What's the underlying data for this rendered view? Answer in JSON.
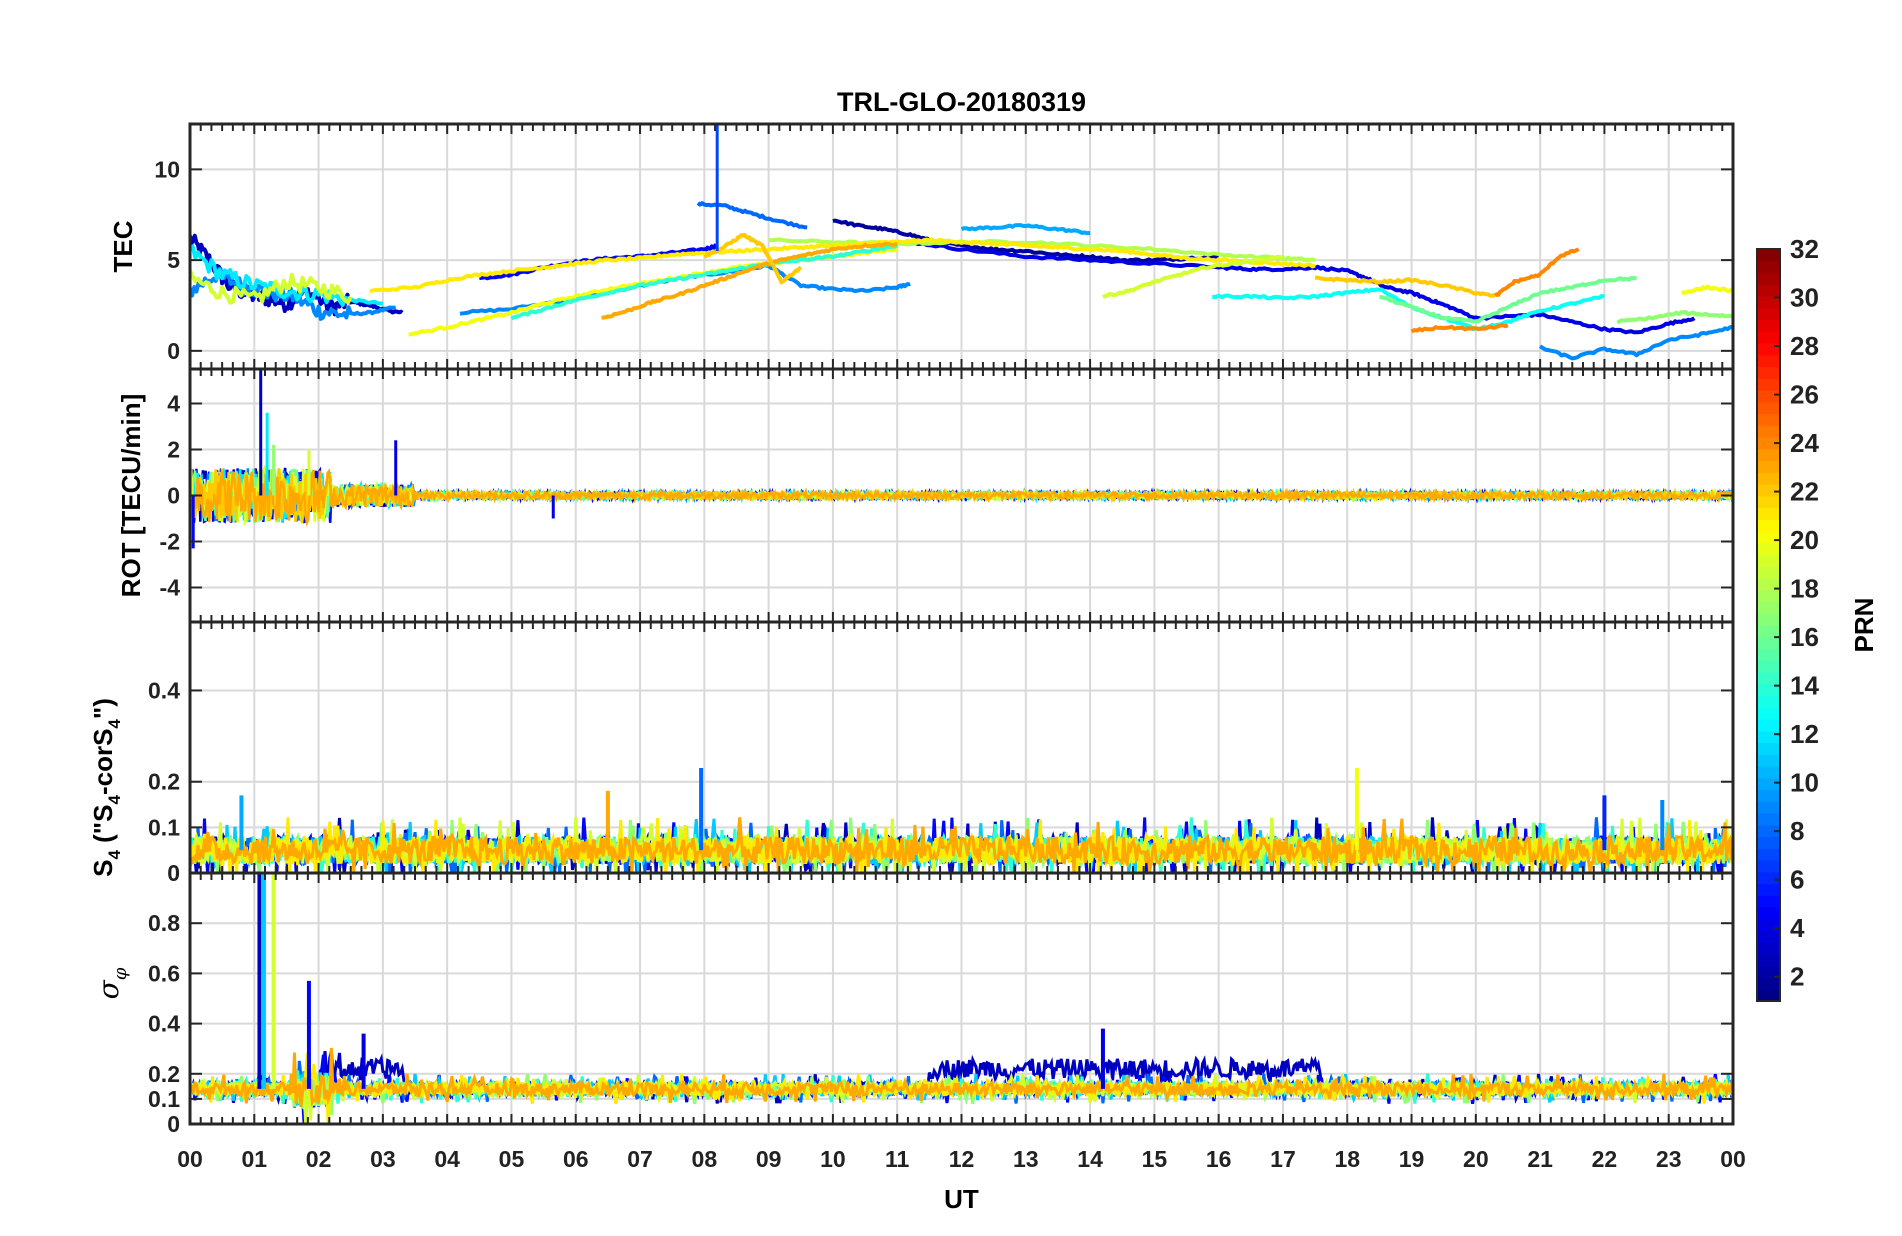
{
  "chart_data": {
    "type": "line",
    "title": "TRL-GLO-20180319",
    "xlabel": "UT",
    "xticks": [
      "00",
      "01",
      "02",
      "03",
      "04",
      "05",
      "06",
      "07",
      "08",
      "09",
      "10",
      "11",
      "12",
      "13",
      "14",
      "15",
      "16",
      "17",
      "18",
      "19",
      "20",
      "21",
      "22",
      "23",
      "00"
    ],
    "xlim": [
      0,
      24
    ],
    "grid": true,
    "panels": [
      {
        "id": "tec",
        "ylabel": "TEC",
        "ylim": [
          -1,
          12.5
        ],
        "yticks": [
          0,
          5,
          10
        ],
        "series": [
          {
            "prn": 3,
            "x": [
              0,
              0.3,
              0.6,
              0.9,
              1.2,
              1.5,
              1.8,
              2.2,
              2.5,
              2.8,
              3.1,
              3.3
            ],
            "y": [
              6.2,
              5.0,
              3.6,
              3.1,
              2.9,
              2.6,
              3.3,
              2.4,
              2.7,
              2.5,
              2.2,
              2.1
            ]
          },
          {
            "prn": 9,
            "x": [
              0,
              0.4,
              0.8,
              1.2,
              1.6,
              2.0,
              2.4,
              2.8,
              3.2
            ],
            "y": [
              3.3,
              4.2,
              3.6,
              3.2,
              3.0,
              2.2,
              2.0,
              2.1,
              2.4
            ]
          },
          {
            "prn": 12,
            "x": [
              0,
              0.5,
              1.0,
              1.5,
              2.0,
              2.5,
              3.0
            ],
            "y": [
              5.5,
              4.2,
              3.6,
              3.3,
              3.1,
              2.8,
              2.6
            ]
          },
          {
            "prn": 19,
            "x": [
              0,
              0.5,
              1.0,
              1.5,
              2.0,
              2.5
            ],
            "y": [
              4.0,
              3.2,
              2.8,
              3.8,
              3.5,
              3.0
            ]
          },
          {
            "prn": 5,
            "x": [
              4.5,
              5.0,
              5.5,
              6.0,
              6.5,
              7.0,
              7.5,
              8.0,
              8.2
            ],
            "y": [
              4.0,
              4.2,
              4.6,
              4.9,
              5.1,
              5.2,
              5.4,
              5.6,
              5.8
            ]
          },
          {
            "prn": 8,
            "x": [
              7.9,
              8.3,
              8.7,
              9.1,
              9.6
            ],
            "y": [
              8.1,
              8.0,
              7.6,
              7.2,
              6.8
            ]
          },
          {
            "prn": 9,
            "x": [
              4.2,
              5.0,
              6.0,
              7.0,
              7.8,
              8.5,
              9.0,
              9.5,
              10.0,
              10.5,
              11.0,
              11.2
            ],
            "y": [
              2.1,
              2.3,
              2.9,
              3.6,
              4.1,
              4.4,
              4.7,
              3.6,
              3.4,
              3.3,
              3.5,
              3.7
            ]
          },
          {
            "prn": 2,
            "x": [
              10.0,
              10.4,
              10.8,
              11.2,
              11.6,
              12.0,
              12.5,
              13.0,
              13.5,
              14.0,
              14.5,
              15.0,
              15.5,
              16.0
            ],
            "y": [
              7.2,
              6.9,
              6.7,
              6.4,
              6.0,
              5.8,
              5.6,
              5.5,
              5.3,
              5.2,
              5.0,
              5.0,
              5.1,
              5.2
            ]
          },
          {
            "prn": 4,
            "x": [
              11.2,
              12.0,
              13.0,
              14.0,
              15.0,
              16.0,
              16.5,
              17.0,
              17.5,
              18.0,
              18.3,
              18.6,
              19.0,
              19.3,
              19.6,
              20.0,
              20.5,
              21.0,
              21.5,
              22.0,
              22.5,
              23.0,
              23.4
            ],
            "y": [
              6.0,
              5.6,
              5.2,
              5.0,
              4.8,
              4.6,
              4.5,
              4.5,
              4.6,
              4.4,
              4.0,
              3.5,
              3.2,
              2.8,
              2.4,
              1.8,
              1.9,
              2.0,
              1.6,
              1.2,
              1.0,
              1.5,
              1.8
            ]
          },
          {
            "prn": 10,
            "x": [
              12.0,
              12.5,
              13.0,
              13.5,
              14.0
            ],
            "y": [
              6.7,
              6.8,
              6.9,
              6.7,
              6.5
            ]
          },
          {
            "prn": 18,
            "x": [
              9.0,
              10.0,
              11.0,
              12.0,
              13.0,
              14.0,
              15.0,
              16.0,
              17.0,
              17.5
            ],
            "y": [
              6.1,
              6.0,
              5.9,
              6.0,
              6.0,
              5.8,
              5.6,
              5.3,
              5.1,
              5.0
            ]
          },
          {
            "prn": 21,
            "x": [
              2.8,
              3.5,
              4.0,
              4.5,
              5.0,
              5.5,
              6.0,
              6.5,
              7.0,
              7.5,
              8.0,
              8.5,
              9.0,
              9.5,
              10.0,
              10.5,
              11.0,
              11.5,
              12.0,
              12.5,
              13.0,
              13.5,
              14.0,
              14.5,
              15.0,
              15.5,
              16.0,
              16.5,
              17.0,
              17.5
            ],
            "y": [
              3.3,
              3.5,
              3.9,
              4.2,
              4.4,
              4.6,
              4.8,
              5.0,
              5.1,
              5.3,
              5.4,
              5.5,
              5.6,
              5.7,
              5.8,
              5.9,
              6.0,
              6.1,
              6.0,
              5.9,
              5.8,
              5.7,
              5.6,
              5.5,
              5.3,
              5.1,
              5.0,
              4.9,
              4.8,
              4.7
            ]
          },
          {
            "prn": 20,
            "x": [
              3.4,
              4.0,
              4.5,
              5.0,
              5.5,
              6.0,
              6.5,
              7.0,
              7.5,
              8.0,
              8.5,
              9.0,
              9.5,
              10.0,
              10.5,
              11.0
            ],
            "y": [
              0.9,
              1.3,
              1.7,
              2.1,
              2.6,
              3.0,
              3.4,
              3.7,
              4.0,
              4.3,
              4.6,
              4.8,
              5.0,
              5.2,
              5.4,
              5.6
            ]
          },
          {
            "prn": 14,
            "x": [
              5.0,
              5.5,
              6.0,
              6.5,
              7.0,
              7.5,
              8.0,
              8.5,
              9.0,
              9.5,
              10.0,
              10.5,
              11.0
            ],
            "y": [
              1.8,
              2.3,
              2.8,
              3.2,
              3.6,
              3.9,
              4.2,
              4.5,
              4.8,
              5.0,
              5.2,
              5.5,
              5.8
            ]
          },
          {
            "prn": 23,
            "x": [
              6.4,
              6.8,
              7.2,
              7.6,
              8.0,
              8.4,
              8.8,
              9.2,
              9.6,
              10.0,
              10.5,
              11.0
            ],
            "y": [
              1.8,
              2.2,
              2.7,
              3.1,
              3.6,
              4.1,
              4.6,
              5.0,
              5.3,
              5.6,
              5.8,
              5.9
            ]
          },
          {
            "prn": 22,
            "x": [
              8.0,
              8.3,
              8.6,
              8.9,
              9.2,
              9.5
            ],
            "y": [
              5.2,
              5.7,
              6.4,
              5.8,
              3.8,
              4.6
            ]
          },
          {
            "prn": 19,
            "x": [
              14.2,
              14.6,
              15.0,
              15.4,
              15.8,
              16.2,
              16.6,
              17.0
            ],
            "y": [
              3.0,
              3.3,
              3.8,
              4.2,
              4.6,
              4.8,
              5.0,
              5.2
            ]
          },
          {
            "prn": 13,
            "x": [
              15.9,
              16.5,
              17.0,
              17.5,
              18.0,
              18.5,
              19.0,
              19.5,
              20.0,
              20.5,
              21.0,
              21.5,
              22.0
            ],
            "y": [
              3.0,
              3.0,
              2.9,
              3.0,
              3.2,
              3.4,
              2.4,
              1.8,
              1.2,
              1.6,
              2.2,
              2.6,
              3.0
            ]
          },
          {
            "prn": 22,
            "x": [
              17.5,
              18.0,
              18.5,
              19.0,
              19.5,
              20.0,
              20.3
            ],
            "y": [
              4.0,
              3.9,
              3.8,
              3.9,
              3.6,
              3.2,
              3.0
            ]
          },
          {
            "prn": 24,
            "x": [
              19.0,
              19.5,
              20.0,
              20.5
            ],
            "y": [
              1.1,
              1.3,
              1.2,
              1.4
            ]
          },
          {
            "prn": 16,
            "x": [
              18.5,
              19.0,
              19.5,
              20.0,
              20.5,
              21.0,
              21.5,
              22.0,
              22.5
            ],
            "y": [
              3.0,
              2.4,
              1.8,
              1.6,
              2.4,
              3.2,
              3.5,
              3.9,
              4.0
            ]
          },
          {
            "prn": 24,
            "x": [
              20.3,
              20.6,
              21.0,
              21.3,
              21.6
            ],
            "y": [
              3.0,
              3.8,
              4.2,
              5.2,
              5.6
            ]
          },
          {
            "prn": 9,
            "x": [
              21.0,
              21.5,
              22.0,
              22.5,
              23.0,
              23.5,
              24.0
            ],
            "y": [
              0.2,
              -0.4,
              0.1,
              -0.2,
              0.6,
              0.9,
              1.3
            ]
          },
          {
            "prn": 17,
            "x": [
              22.2,
              22.7,
              23.2,
              23.6,
              24.0
            ],
            "y": [
              1.6,
              1.8,
              2.1,
              2.0,
              1.9
            ]
          },
          {
            "prn": 20,
            "x": [
              23.2,
              23.6,
              24.0
            ],
            "y": [
              3.2,
              3.5,
              3.3
            ]
          }
        ]
      },
      {
        "id": "rot",
        "ylabel": "ROT [TECU/min]",
        "ylim": [
          -5.5,
          5.5
        ],
        "yticks": [
          -4,
          -2,
          0,
          2,
          4
        ],
        "spikes": [
          {
            "prn": 3,
            "x": 1.1,
            "y": 5.6
          },
          {
            "prn": 12,
            "x": 1.2,
            "y": 3.6
          },
          {
            "prn": 17,
            "x": 1.3,
            "y": 2.2
          },
          {
            "prn": 19,
            "x": 1.85,
            "y": 2.0
          },
          {
            "prn": 4,
            "x": 3.2,
            "y": 2.4
          },
          {
            "prn": 5,
            "x": 0.05,
            "y": -2.3
          },
          {
            "prn": 4,
            "x": 5.65,
            "y": -1.0
          }
        ],
        "noise_band": {
          "xlim": [
            0,
            24
          ],
          "amplitude_early": 1.2,
          "amplitude_late": 0.15
        }
      },
      {
        "id": "s4",
        "ylabel": "S4 (\"S4-corS4\")",
        "ylim": [
          0,
          0.55
        ],
        "yticks": [
          0,
          0.1,
          0.2,
          0.4
        ],
        "baseline": 0.05,
        "peaks": [
          {
            "prn": 8,
            "x": 7.95,
            "y": 0.23
          },
          {
            "prn": 20,
            "x": 18.15,
            "y": 0.23
          },
          {
            "prn": 23,
            "x": 6.5,
            "y": 0.18
          },
          {
            "prn": 9,
            "x": 22.9,
            "y": 0.16
          },
          {
            "prn": 6,
            "x": 22.0,
            "y": 0.17
          },
          {
            "prn": 10,
            "x": 0.8,
            "y": 0.17
          }
        ]
      },
      {
        "id": "sigma",
        "ylabel": "σφ",
        "ylim": [
          0,
          1
        ],
        "yticks": [
          0,
          0.1,
          0.2,
          0.4,
          0.6,
          0.8
        ],
        "baseline": 0.14,
        "peaks": [
          {
            "prn": 3,
            "x": 1.08,
            "y": 1.0
          },
          {
            "prn": 11,
            "x": 1.15,
            "y": 1.0
          },
          {
            "prn": 19,
            "x": 1.3,
            "y": 1.0
          },
          {
            "prn": 5,
            "x": 1.85,
            "y": 0.57
          },
          {
            "prn": 4,
            "x": 14.2,
            "y": 0.38
          },
          {
            "prn": 4,
            "x": 2.7,
            "y": 0.36
          }
        ]
      }
    ],
    "colorbar": {
      "label": "PRN",
      "range": [
        1,
        32
      ],
      "ticks": [
        2,
        4,
        6,
        8,
        10,
        12,
        14,
        16,
        18,
        20,
        22,
        24,
        26,
        28,
        30,
        32
      ],
      "colormap": "jet"
    }
  }
}
